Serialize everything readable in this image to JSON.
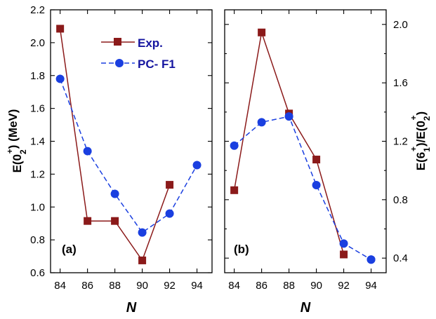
{
  "chart_data": [
    {
      "type": "line",
      "panel_label": "(a)",
      "xlabel": "N",
      "ylabel_main": "E(0",
      "ylabel_sub": "2",
      "ylabel_sup": "+",
      "ylabel_tail": ") (MeV)",
      "y_axis_side": "left",
      "xlim": [
        83.3,
        95.1
      ],
      "ylim": [
        0.6,
        2.2
      ],
      "xticks": [
        84,
        86,
        88,
        90,
        92,
        94
      ],
      "yticks": [
        0.6,
        0.8,
        1.0,
        1.2,
        1.4,
        1.6,
        1.8,
        2.0,
        2.2
      ],
      "ytick_labels": [
        "0.6",
        "0.8",
        "1.0",
        "1.2",
        "1.4",
        "1.6",
        "1.8",
        "2.0",
        "2.2"
      ],
      "series": [
        {
          "name": "Exp.",
          "marker": "square",
          "line": "solid",
          "x": [
            84,
            86,
            88,
            90,
            92
          ],
          "values": [
            2.085,
            0.915,
            0.915,
            0.675,
            1.135
          ]
        },
        {
          "name": "PC- F1",
          "marker": "circle",
          "line": "dashed",
          "x": [
            84,
            86,
            88,
            90,
            92,
            94
          ],
          "values": [
            1.78,
            1.34,
            1.08,
            0.845,
            0.96,
            1.255
          ]
        }
      ]
    },
    {
      "type": "line",
      "panel_label": "(b)",
      "xlabel": "N",
      "ylabel_parts": [
        "E(6",
        "1",
        "+",
        ")/E(0",
        "2",
        "+",
        ")"
      ],
      "y_axis_side": "right",
      "xlim": [
        83.3,
        95.1
      ],
      "ylim": [
        0.3,
        2.1
      ],
      "xticks": [
        84,
        86,
        88,
        90,
        92,
        94
      ],
      "yticks": [
        0.4,
        0.8,
        1.2,
        1.6,
        2.0
      ],
      "ytick_labels": [
        "0.4",
        "0.8",
        "1.2",
        "1.6",
        "2.0"
      ],
      "minor_yticks": [
        0.6,
        1.0,
        1.4,
        1.8
      ],
      "series": [
        {
          "name": "Exp.",
          "marker": "square",
          "line": "solid",
          "x": [
            84,
            86,
            88,
            90,
            92
          ],
          "values": [
            0.865,
            1.945,
            1.39,
            1.075,
            0.425
          ]
        },
        {
          "name": "PC- F1",
          "marker": "circle",
          "line": "dashed",
          "x": [
            84,
            86,
            88,
            90,
            92,
            94,
            94
          ],
          "values": [
            1.17,
            1.33,
            1.37,
            0.9,
            0.5,
            0.39,
            0.39
          ]
        }
      ]
    }
  ],
  "colors": {
    "exp": "#8b1a1a",
    "theory": "#1a3fe0",
    "legend_text": "#1515a0",
    "axis": "#000000"
  },
  "legend": {
    "placement": "top-right of panel (a)",
    "exp_label": "Exp.",
    "theory_label": "PC- F1"
  }
}
